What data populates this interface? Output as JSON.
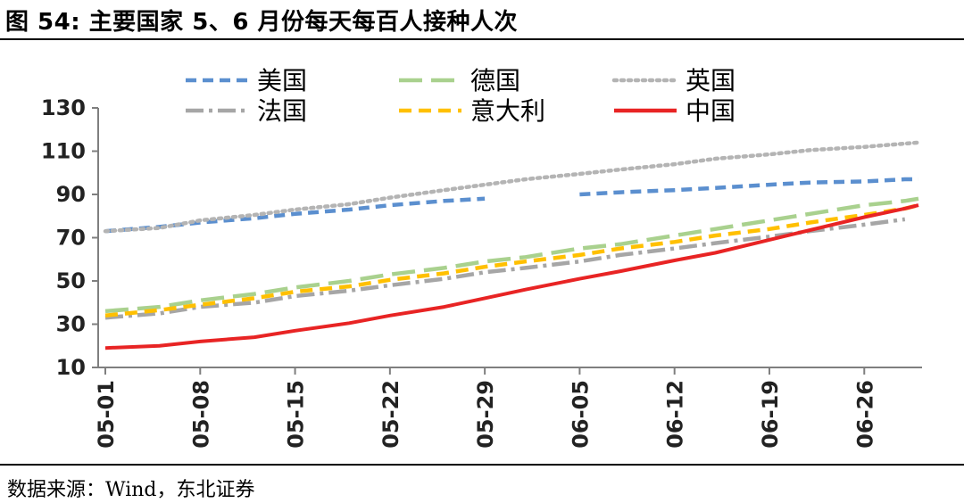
{
  "header": {
    "title": "图 54:  主要国家 5、6 月份每天每百人接种人次"
  },
  "footer": {
    "source": "数据来源：Wind，东北证券"
  },
  "colors": {
    "us": "#5b8fcf",
    "de": "#a9d18e",
    "uk": "#b4b4b4",
    "fr": "#a6a6a6",
    "it": "#ffc000",
    "cn": "#e82424"
  },
  "chart_data": {
    "type": "line",
    "title": "主要国家 5、6 月份每天每百人接种人次",
    "xlabel": "",
    "ylabel": "",
    "ylim": [
      10,
      130
    ],
    "yticks": [
      "10",
      "30",
      "50",
      "70",
      "90",
      "110",
      "130"
    ],
    "xlim": [
      "05-01",
      "06-30"
    ],
    "xticks": [
      "05-01",
      "05-08",
      "05-15",
      "05-22",
      "05-29",
      "06-05",
      "06-12",
      "06-19",
      "06-26"
    ],
    "grid": false,
    "legend": "top",
    "x": [
      "05-01",
      "05-05",
      "05-08",
      "05-12",
      "05-15",
      "05-19",
      "05-22",
      "05-26",
      "05-29",
      "06-01",
      "06-05",
      "06-08",
      "06-12",
      "06-15",
      "06-19",
      "06-22",
      "06-26",
      "06-29",
      "06-30"
    ],
    "series": [
      {
        "name": "美国",
        "key": "us",
        "dash": "12,7",
        "values": [
          73,
          75,
          77,
          79,
          81,
          83,
          85,
          87,
          88,
          null,
          90,
          91,
          92,
          93,
          94.5,
          95.5,
          96,
          97,
          97
        ]
      },
      {
        "name": "德国",
        "key": "de",
        "dash": "26,10",
        "values": [
          36,
          38,
          41,
          44,
          47,
          50,
          53,
          56,
          59,
          61,
          65,
          67,
          71,
          74,
          78,
          81,
          85,
          87,
          88
        ]
      },
      {
        "name": "英国",
        "key": "uk",
        "dash": "3,5",
        "values": [
          73,
          74.5,
          78,
          80.5,
          83,
          85.5,
          88.5,
          92,
          94.5,
          97,
          99.5,
          101.5,
          104,
          106.5,
          108.5,
          110.5,
          112,
          113.5,
          114
        ]
      },
      {
        "name": "法国",
        "key": "fr",
        "dash": "20,6,4,6",
        "values": [
          33,
          35,
          38,
          40,
          43,
          45.5,
          48,
          51,
          54,
          56,
          59,
          62,
          65,
          67.5,
          70.5,
          73,
          76,
          78.5,
          null
        ]
      },
      {
        "name": "意大利",
        "key": "it",
        "dash": "14,8",
        "values": [
          34,
          36.5,
          39,
          42,
          45,
          47.5,
          50.5,
          53.5,
          56.5,
          59,
          62,
          65,
          68,
          71,
          74,
          77,
          80.5,
          83.5,
          85
        ]
      },
      {
        "name": "中国",
        "key": "cn",
        "dash": "",
        "values": [
          19,
          20,
          22,
          24,
          27,
          30.5,
          34,
          38,
          42,
          46,
          51,
          54.5,
          59.5,
          63,
          69,
          73.5,
          79.5,
          83.5,
          85
        ]
      }
    ]
  }
}
